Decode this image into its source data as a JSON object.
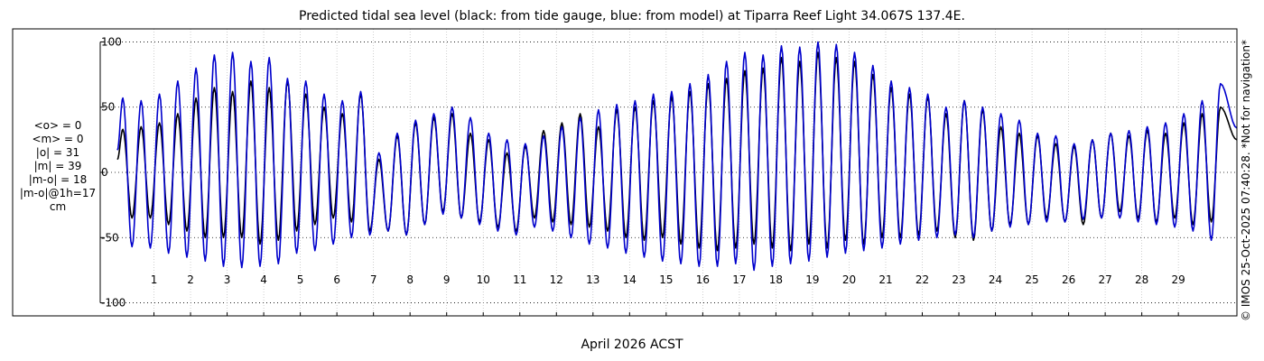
{
  "chart_data": {
    "type": "line",
    "title": "Predicted tidal sea level (black: from tide gauge, blue: from model) at Tiparra Reef Light 34.067S 137.4E.",
    "xlabel": "April 2026 ACST",
    "ylabel": "",
    "ylim": [
      -110,
      110
    ],
    "xlim": [
      0,
      30.6
    ],
    "y_ticks": [
      100,
      50,
      0,
      -50,
      -100
    ],
    "y_tick_labels": [
      "100",
      "50",
      "0",
      "-50",
      "-100"
    ],
    "x_ticks": [
      1,
      2,
      3,
      4,
      5,
      6,
      7,
      8,
      9,
      10,
      11,
      12,
      13,
      14,
      15,
      16,
      17,
      18,
      19,
      20,
      21,
      22,
      23,
      24,
      25,
      26,
      27,
      28,
      29
    ],
    "x_tick_labels": [
      "1",
      "2",
      "3",
      "4",
      "5",
      "6",
      "7",
      "8",
      "9",
      "10",
      "11",
      "12",
      "13",
      "14",
      "15",
      "16",
      "17",
      "18",
      "19",
      "20",
      "21",
      "22",
      "23",
      "24",
      "25",
      "26",
      "27",
      "28",
      "29"
    ],
    "grid": true,
    "units": "cm",
    "series": [
      {
        "color": "#000000",
        "peak_days": [
          0.15,
          0.65,
          1.15,
          1.65,
          2.15,
          2.65,
          3.15,
          3.65,
          4.15,
          4.65,
          5.15,
          5.65,
          6.15,
          6.65,
          7.15,
          7.65,
          8.15,
          8.65,
          9.15,
          9.65,
          10.15,
          10.65,
          11.15,
          11.65,
          12.15,
          12.65,
          13.15,
          13.65,
          14.15,
          14.65,
          15.15,
          15.65,
          16.15,
          16.65,
          17.15,
          17.65,
          18.15,
          18.65,
          19.15,
          19.65,
          20.15,
          20.65,
          21.15,
          21.65,
          22.15,
          22.65,
          23.15,
          23.65,
          24.15,
          24.65,
          25.15,
          25.65,
          26.15,
          26.65,
          27.15,
          27.65,
          28.15,
          28.65,
          29.15,
          29.65,
          30.15
        ],
        "peak_values": [
          33,
          35,
          38,
          45,
          57,
          65,
          62,
          70,
          65,
          70,
          60,
          50,
          45,
          60,
          10,
          28,
          38,
          42,
          45,
          30,
          25,
          15,
          20,
          32,
          38,
          45,
          35,
          48,
          50,
          55,
          58,
          62,
          68,
          72,
          78,
          80,
          88,
          85,
          92,
          88,
          85,
          75,
          65,
          60,
          58,
          45,
          55,
          48,
          35,
          30,
          28,
          22,
          20,
          25,
          30,
          28,
          32,
          30,
          38,
          45,
          50
        ],
        "trough_days": [
          0.4,
          0.9,
          1.4,
          1.9,
          2.4,
          2.9,
          3.4,
          3.9,
          4.4,
          4.9,
          5.4,
          5.9,
          6.4,
          6.9,
          7.4,
          7.9,
          8.4,
          8.9,
          9.4,
          9.9,
          10.4,
          10.9,
          11.4,
          11.9,
          12.4,
          12.9,
          13.4,
          13.9,
          14.4,
          14.9,
          15.4,
          15.9,
          16.4,
          16.9,
          17.4,
          17.9,
          18.4,
          18.9,
          19.4,
          19.9,
          20.4,
          20.9,
          21.4,
          21.9,
          22.4,
          22.9,
          23.4,
          23.9,
          24.4,
          24.9,
          25.4,
          25.9,
          26.4,
          26.9,
          27.4,
          27.9,
          28.4,
          28.9,
          29.4,
          29.9
        ],
        "trough_values": [
          -35,
          -35,
          -40,
          -45,
          -50,
          -50,
          -50,
          -55,
          -52,
          -45,
          -40,
          -35,
          -38,
          -45,
          -45,
          -48,
          -40,
          -30,
          -35,
          -38,
          -42,
          -45,
          -35,
          -38,
          -40,
          -42,
          -45,
          -50,
          -52,
          -50,
          -55,
          -58,
          -60,
          -58,
          -55,
          -58,
          -60,
          -55,
          -58,
          -52,
          -55,
          -50,
          -50,
          -48,
          -45,
          -50,
          -52,
          -45,
          -40,
          -40,
          -35,
          -38,
          -40,
          -35,
          -30,
          -35,
          -38,
          -35,
          -40,
          -38
        ]
      },
      {
        "color": "#0000cc",
        "peak_days": [
          0.15,
          0.65,
          1.15,
          1.65,
          2.15,
          2.65,
          3.15,
          3.65,
          4.15,
          4.65,
          5.15,
          5.65,
          6.15,
          6.65,
          7.15,
          7.65,
          8.15,
          8.65,
          9.15,
          9.65,
          10.15,
          10.65,
          11.15,
          11.65,
          12.15,
          12.65,
          13.15,
          13.65,
          14.15,
          14.65,
          15.15,
          15.65,
          16.15,
          16.65,
          17.15,
          17.65,
          18.15,
          18.65,
          19.15,
          19.65,
          20.15,
          20.65,
          21.15,
          21.65,
          22.15,
          22.65,
          23.15,
          23.65,
          24.15,
          24.65,
          25.15,
          25.65,
          26.15,
          26.65,
          27.15,
          27.65,
          28.15,
          28.65,
          29.15,
          29.65,
          30.15
        ],
        "peak_values": [
          57,
          55,
          60,
          70,
          80,
          90,
          92,
          85,
          88,
          72,
          70,
          60,
          55,
          62,
          15,
          30,
          40,
          45,
          50,
          42,
          30,
          25,
          22,
          28,
          35,
          42,
          48,
          52,
          55,
          60,
          62,
          68,
          75,
          85,
          92,
          90,
          97,
          96,
          100,
          98,
          92,
          82,
          70,
          65,
          60,
          50,
          55,
          50,
          45,
          40,
          30,
          28,
          22,
          25,
          30,
          32,
          35,
          38,
          45,
          55,
          68
        ],
        "trough_days": [
          0.4,
          0.9,
          1.4,
          1.9,
          2.4,
          2.9,
          3.4,
          3.9,
          4.4,
          4.9,
          5.4,
          5.9,
          6.4,
          6.9,
          7.4,
          7.9,
          8.4,
          8.9,
          9.4,
          9.9,
          10.4,
          10.9,
          11.4,
          11.9,
          12.4,
          12.9,
          13.4,
          13.9,
          14.4,
          14.9,
          15.4,
          15.9,
          16.4,
          16.9,
          17.4,
          17.9,
          18.4,
          18.9,
          19.4,
          19.9,
          20.4,
          20.9,
          21.4,
          21.9,
          22.4,
          22.9,
          23.4,
          23.9,
          24.4,
          24.9,
          25.4,
          25.9,
          26.4,
          26.9,
          27.4,
          27.9,
          28.4,
          28.9,
          29.4,
          29.9
        ],
        "trough_values": [
          -57,
          -58,
          -62,
          -65,
          -68,
          -72,
          -73,
          -72,
          -70,
          -62,
          -60,
          -55,
          -50,
          -48,
          -45,
          -48,
          -40,
          -32,
          -35,
          -40,
          -45,
          -48,
          -42,
          -45,
          -50,
          -55,
          -58,
          -62,
          -65,
          -68,
          -70,
          -72,
          -72,
          -70,
          -75,
          -72,
          -70,
          -68,
          -65,
          -62,
          -60,
          -58,
          -55,
          -52,
          -50,
          -48,
          -50,
          -45,
          -42,
          -40,
          -38,
          -38,
          -36,
          -35,
          -35,
          -38,
          -40,
          -42,
          -45,
          -52
        ]
      }
    ]
  },
  "stats": {
    "mean_obs": "<o> = 0",
    "mean_model": "<m> = 0",
    "abs_obs": "|o| = 31",
    "abs_model": "|m| = 39",
    "abs_diff": "|m-o| = 18",
    "abs_diff_1h": "|m-o|@1h=17",
    "unit": "cm"
  },
  "credit": "© IMOS 25-Oct-2025 07:40:28. *Not for navigation*"
}
